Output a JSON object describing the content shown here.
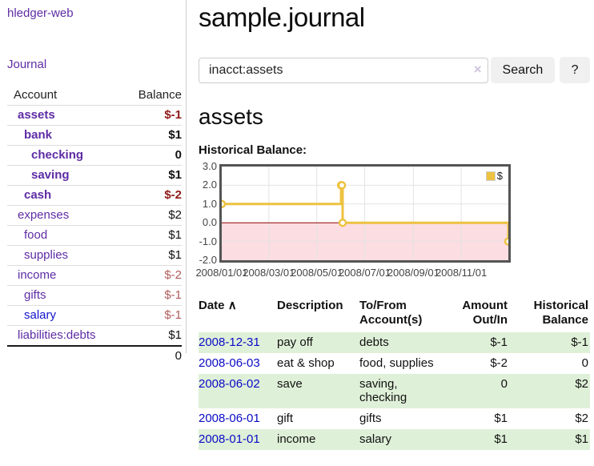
{
  "app": {
    "brand": "hledger-web"
  },
  "sidebar": {
    "journal_link": "Journal",
    "account_header": "Account",
    "balance_header": "Balance",
    "accounts": [
      {
        "name": "assets",
        "balance": "$-1"
      },
      {
        "name": "bank",
        "balance": "$1"
      },
      {
        "name": "checking",
        "balance": "0"
      },
      {
        "name": "saving",
        "balance": "$1"
      },
      {
        "name": "cash",
        "balance": "$-2"
      },
      {
        "name": "expenses",
        "balance": "$2"
      },
      {
        "name": "food",
        "balance": "$1"
      },
      {
        "name": "supplies",
        "balance": "$1"
      },
      {
        "name": "income",
        "balance": "$-2"
      },
      {
        "name": "gifts",
        "balance": "$-1"
      },
      {
        "name": "salary",
        "balance": "$-1"
      },
      {
        "name": "liabilities:debts",
        "balance": "$1"
      }
    ],
    "total": "0"
  },
  "header": {
    "title": "sample.journal"
  },
  "search": {
    "value": "inacct:assets",
    "clear_icon": "×",
    "button_label": "Search",
    "help_label": "?"
  },
  "account_page": {
    "title": "assets",
    "chart_heading": "Historical Balance:"
  },
  "chart_data": {
    "type": "line",
    "title": "Historical Balance:",
    "step": true,
    "x_domain": [
      "2008-01-01",
      "2008-12-31"
    ],
    "y_domain": [
      -2,
      3
    ],
    "series": [
      {
        "name": "$",
        "color": "#edc240",
        "points": [
          [
            "2008-01-01",
            1
          ],
          [
            "2008-06-01",
            2
          ],
          [
            "2008-06-02",
            2
          ],
          [
            "2008-06-03",
            0
          ],
          [
            "2008-12-31",
            -1
          ]
        ]
      }
    ],
    "y_ticks": [
      {
        "v": 3,
        "label": "3.0"
      },
      {
        "v": 2,
        "label": "2.0"
      },
      {
        "v": 1,
        "label": "1.0"
      },
      {
        "v": 0,
        "label": "0.0"
      },
      {
        "v": -1,
        "label": "-1.0"
      },
      {
        "v": -2,
        "label": "-2.0"
      }
    ],
    "x_ticks": [
      {
        "date": "2008-01-01",
        "label": "2008/01/01"
      },
      {
        "date": "2008-03-01",
        "label": "2008/03/01"
      },
      {
        "date": "2008-05-01",
        "label": "2008/05/01"
      },
      {
        "date": "2008-07-01",
        "label": "2008/07/01"
      },
      {
        "date": "2008-09-01",
        "label": "2008/09/01"
      },
      {
        "date": "2008-11-01",
        "label": "2008/11/01"
      }
    ],
    "legend": [
      {
        "swatch_color": "#edc240",
        "label": "$"
      }
    ],
    "negative_region_fill": "#fbdde2",
    "zero_line_color": "#8b0000",
    "grid_color": "#e3e3e3",
    "grid": true,
    "legend_position": "top-right"
  },
  "register": {
    "sort_icon": "∧",
    "headers": [
      "Date",
      "Description",
      "To/From Account(s)",
      "Amount Out/In",
      "Historical Balance"
    ],
    "rows": [
      {
        "date": "2008-12-31",
        "description": "pay off",
        "accounts": "debts",
        "amount": "$-1",
        "balance": "$-1"
      },
      {
        "date": "2008-06-03",
        "description": "eat & shop",
        "accounts": "food, supplies",
        "amount": "$-2",
        "balance": "0"
      },
      {
        "date": "2008-06-02",
        "description": "save",
        "accounts": "saving,\nchecking",
        "amount": "0",
        "balance": "$2"
      },
      {
        "date": "2008-06-01",
        "description": "gift",
        "accounts": "gifts",
        "amount": "$1",
        "balance": "$2"
      },
      {
        "date": "2008-01-01",
        "description": "income",
        "accounts": "salary",
        "amount": "$1",
        "balance": "$1"
      }
    ]
  },
  "colors": {
    "link_purple": "#5e2ca5",
    "link_blue": "#1414cc",
    "date_link_blue": "#0a0ac6",
    "negative_dark_red": "#8f1a1a",
    "negative_rose": "#b05c5c",
    "negative_table_red": "#9b1c1c",
    "row_stripe_green": "#dff0d8",
    "chart_line_gold": "#edc240",
    "chart_negative_pink": "#fbdde2",
    "chart_zero_line": "#8b0000",
    "chart_border": "#545454",
    "button_gray": "#f0f0f0"
  }
}
